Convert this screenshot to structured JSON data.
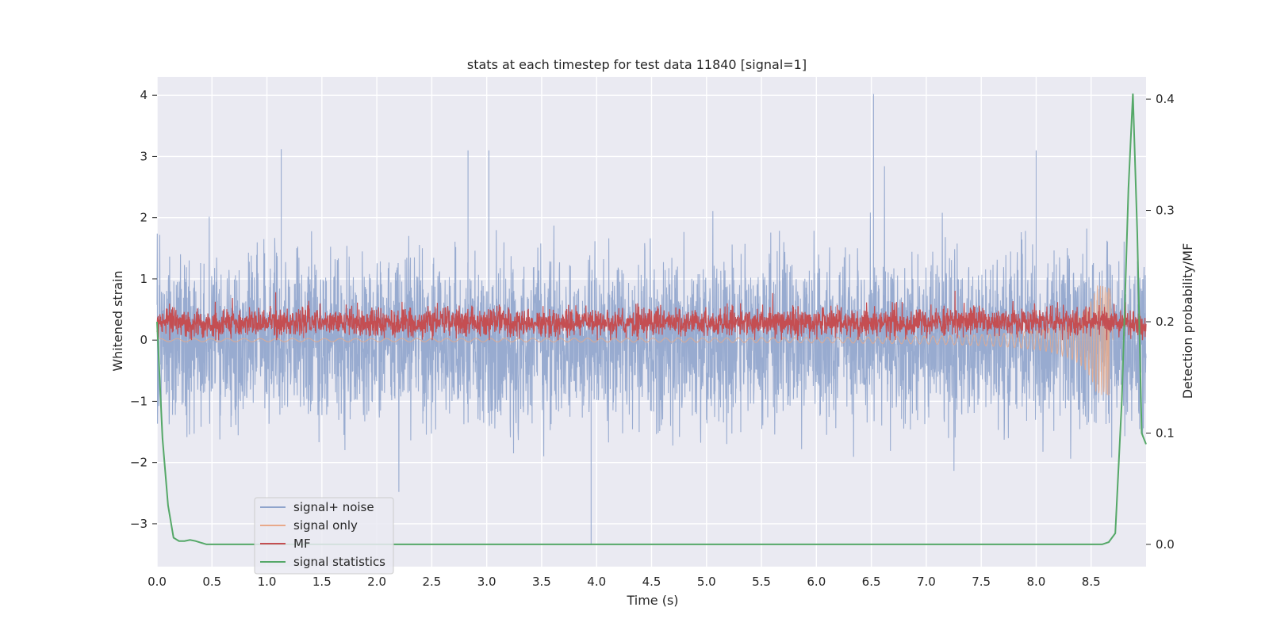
{
  "chart_data": {
    "type": "line",
    "title": "stats at each timestep for test data 11840 [signal=1]",
    "xlabel": "Time (s)",
    "ylabel": "Whitened strain",
    "y2label": "Detection probability/MF",
    "xlim": [
      0.0,
      9.0
    ],
    "ylim": [
      -3.7,
      4.3
    ],
    "y2lim": [
      -0.02,
      0.42
    ],
    "x_ticks": [
      "0.0",
      "0.5",
      "1.0",
      "1.5",
      "2.0",
      "2.5",
      "3.0",
      "3.5",
      "4.0",
      "4.5",
      "5.0",
      "5.5",
      "6.0",
      "6.5",
      "7.0",
      "7.5",
      "8.0",
      "8.5"
    ],
    "y_ticks": [
      "−3",
      "−2",
      "−1",
      "0",
      "1",
      "2",
      "3",
      "4"
    ],
    "y2_ticks": [
      "0.0",
      "0.1",
      "0.2",
      "0.3",
      "0.4"
    ],
    "grid": true,
    "legend_position": "lower-left",
    "series": [
      {
        "name": "signal+ noise",
        "axis": "left",
        "color": "#8fa4cc",
        "style": "dense noise",
        "approx_range": [
          -3.4,
          4.0
        ],
        "notable_peaks": [
          {
            "x": 6.52,
            "y": 4.02
          },
          {
            "x": 3.95,
            "y": -3.35
          },
          {
            "x": 1.13,
            "y": 3.12
          },
          {
            "x": 2.83,
            "y": 3.1
          },
          {
            "x": 3.02,
            "y": 3.1
          },
          {
            "x": 8.0,
            "y": 3.1
          }
        ]
      },
      {
        "name": "signal only",
        "axis": "left",
        "color": "#e8a98a",
        "style": "chirp",
        "start_amplitude": 0.02,
        "peak_amplitude": 0.9,
        "merger_time": 8.67
      },
      {
        "name": "MF",
        "axis": "left",
        "color": "#c44e52",
        "style": "positive noise band",
        "approx_range": [
          0.0,
          0.86
        ]
      },
      {
        "name": "signal statistics",
        "axis": "right",
        "color": "#55a868",
        "x": [
          0.0,
          0.05,
          0.1,
          0.15,
          0.2,
          0.25,
          0.3,
          0.35,
          0.4,
          0.45,
          0.5,
          1.0,
          2.0,
          3.0,
          4.0,
          5.0,
          6.0,
          7.0,
          8.0,
          8.5,
          8.6,
          8.66,
          8.72,
          8.78,
          8.84,
          8.88,
          8.92,
          8.96,
          9.0
        ],
        "y": [
          0.2,
          0.095,
          0.035,
          0.006,
          0.003,
          0.003,
          0.004,
          0.003,
          0.0015,
          0.0,
          0.0,
          0.0,
          0.0,
          0.0,
          0.0,
          0.0,
          0.0,
          0.0,
          0.0,
          0.0,
          0.0,
          0.002,
          0.01,
          0.13,
          0.32,
          0.405,
          0.28,
          0.1,
          0.09
        ]
      }
    ]
  }
}
